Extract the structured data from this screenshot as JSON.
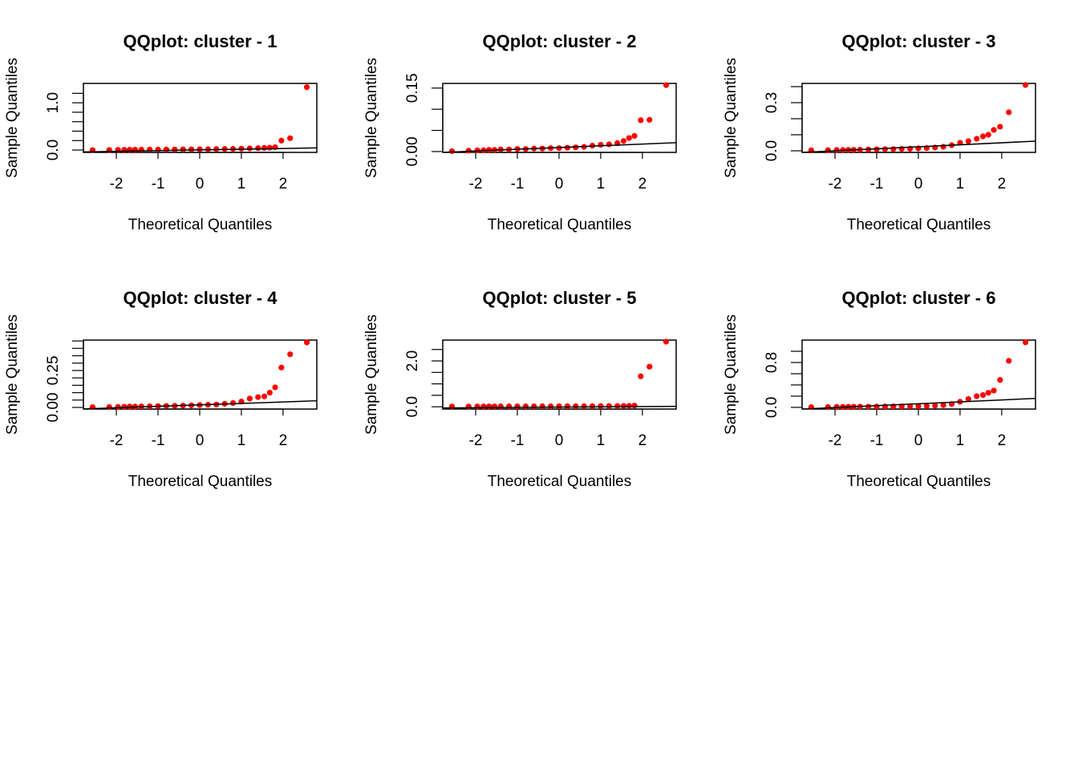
{
  "chart_data": [
    {
      "type": "scatter",
      "title": "QQplot: cluster - 1",
      "x_label": "Theoretical Quantiles",
      "y_label": "Sample Quantiles",
      "color": "#ff0000",
      "x": [
        -2.57,
        -2.17,
        -1.96,
        -1.81,
        -1.68,
        -1.55,
        -1.4,
        -1.2,
        -1.0,
        -0.8,
        -0.6,
        -0.4,
        -0.2,
        0,
        0.2,
        0.4,
        0.6,
        0.8,
        1.0,
        1.2,
        1.4,
        1.55,
        1.68,
        1.81,
        1.96,
        2.17,
        2.57
      ],
      "values": [
        0,
        0.002,
        0.004,
        0.005,
        0.006,
        0.007,
        0.008,
        0.01,
        0.011,
        0.012,
        0.013,
        0.014,
        0.015,
        0.016,
        0.018,
        0.02,
        0.022,
        0.025,
        0.03,
        0.035,
        0.04,
        0.045,
        0.05,
        0.06,
        0.2,
        0.25,
        1.33
      ],
      "reference_line": {
        "x": [
          -2.8,
          2.8
        ],
        "y": [
          -0.04,
          0.045
        ]
      },
      "xlim": [
        -2.79,
        2.81
      ],
      "xticks": [
        -2,
        -1,
        0,
        1,
        2
      ],
      "ylim": [
        -0.05,
        1.41
      ],
      "yticks": [
        {
          "value": 0,
          "label": "0.0"
        },
        {
          "value": 1,
          "label": "1.0"
        }
      ],
      "yminorticks": [
        0.2,
        0.4,
        0.6,
        0.8,
        1.2
      ]
    },
    {
      "type": "scatter",
      "title": "QQplot: cluster - 2",
      "x_label": "Theoretical Quantiles",
      "y_label": "Sample Quantiles",
      "color": "#ff0000",
      "x": [
        -2.57,
        -2.17,
        -1.96,
        -1.81,
        -1.68,
        -1.55,
        -1.4,
        -1.2,
        -1.0,
        -0.8,
        -0.6,
        -0.4,
        -0.2,
        0,
        0.2,
        0.4,
        0.6,
        0.8,
        1.0,
        1.2,
        1.4,
        1.55,
        1.68,
        1.81,
        1.96,
        2.17,
        2.57
      ],
      "values": [
        0.001,
        0.002,
        0.003,
        0.003,
        0.004,
        0.004,
        0.005,
        0.005,
        0.006,
        0.006,
        0.007,
        0.007,
        0.008,
        0.008,
        0.009,
        0.01,
        0.011,
        0.014,
        0.016,
        0.017,
        0.02,
        0.025,
        0.032,
        0.037,
        0.074,
        0.075,
        0.157
      ],
      "reference_line": {
        "x": [
          -2.8,
          2.8
        ],
        "y": [
          -0.002,
          0.021
        ]
      },
      "xlim": [
        -2.79,
        2.81
      ],
      "xticks": [
        -2,
        -1,
        0,
        1,
        2
      ],
      "ylim": [
        -0.002,
        0.161
      ],
      "yticks": [
        {
          "value": 0,
          "label": "0.00"
        },
        {
          "value": 0.15,
          "label": "0.15"
        }
      ],
      "yminorticks": [
        0.05,
        0.1
      ]
    },
    {
      "type": "scatter",
      "title": "QQplot: cluster - 3",
      "x_label": "Theoretical Quantiles",
      "y_label": "Sample Quantiles",
      "color": "#ff0000",
      "x": [
        -2.57,
        -2.17,
        -1.96,
        -1.81,
        -1.68,
        -1.55,
        -1.4,
        -1.2,
        -1.0,
        -0.8,
        -0.6,
        -0.4,
        -0.2,
        0,
        0.2,
        0.4,
        0.6,
        0.8,
        1.0,
        1.2,
        1.4,
        1.55,
        1.68,
        1.81,
        1.96,
        2.17,
        2.57
      ],
      "values": [
        0.003,
        0.004,
        0.005,
        0.005,
        0.006,
        0.006,
        0.007,
        0.008,
        0.009,
        0.01,
        0.011,
        0.012,
        0.013,
        0.015,
        0.017,
        0.02,
        0.025,
        0.035,
        0.05,
        0.06,
        0.075,
        0.09,
        0.1,
        0.13,
        0.15,
        0.24,
        0.41
      ],
      "reference_line": {
        "x": [
          -2.8,
          2.8
        ],
        "y": [
          -0.01,
          0.06
        ]
      },
      "xlim": [
        -2.79,
        2.81
      ],
      "xticks": [
        -2,
        -1,
        0,
        1,
        2
      ],
      "ylim": [
        -0.01,
        0.42
      ],
      "yticks": [
        {
          "value": 0,
          "label": "0.0"
        },
        {
          "value": 0.3,
          "label": "0.3"
        }
      ],
      "yminorticks": [
        0.1,
        0.2,
        0.4
      ]
    },
    {
      "type": "scatter",
      "title": "QQplot: cluster - 4",
      "x_label": "Theoretical Quantiles",
      "y_label": "Sample Quantiles",
      "color": "#ff0000",
      "x": [
        -2.57,
        -2.17,
        -1.96,
        -1.81,
        -1.68,
        -1.55,
        -1.4,
        -1.2,
        -1.0,
        -0.8,
        -0.6,
        -0.4,
        -0.2,
        0,
        0.2,
        0.4,
        0.6,
        0.8,
        1.0,
        1.2,
        1.4,
        1.55,
        1.68,
        1.81,
        1.96,
        2.17,
        2.57
      ],
      "values": [
        0.002,
        0.003,
        0.004,
        0.005,
        0.006,
        0.006,
        0.007,
        0.008,
        0.009,
        0.01,
        0.011,
        0.012,
        0.014,
        0.016,
        0.018,
        0.02,
        0.025,
        0.03,
        0.04,
        0.06,
        0.07,
        0.075,
        0.1,
        0.136,
        0.27,
        0.36,
        0.44
      ],
      "reference_line": {
        "x": [
          -2.8,
          2.8
        ],
        "y": [
          -0.01,
          0.045
        ]
      },
      "xlim": [
        -2.79,
        2.81
      ],
      "xticks": [
        -2,
        -1,
        0,
        1,
        2
      ],
      "ylim": [
        -0.011,
        0.456
      ],
      "yticks": [
        {
          "value": 0,
          "label": "0.00"
        },
        {
          "value": 0.25,
          "label": "0.25"
        }
      ],
      "yminorticks": [
        0.05,
        0.1,
        0.15,
        0.2,
        0.3,
        0.35,
        0.4,
        0.45
      ]
    },
    {
      "type": "scatter",
      "title": "QQplot: cluster - 5",
      "x_label": "Theoretical Quantiles",
      "y_label": "Sample Quantiles",
      "color": "#ff0000",
      "x": [
        -2.57,
        -2.17,
        -1.96,
        -1.81,
        -1.68,
        -1.55,
        -1.4,
        -1.2,
        -1.0,
        -0.8,
        -0.6,
        -0.4,
        -0.2,
        0,
        0.2,
        0.4,
        0.6,
        0.8,
        1.0,
        1.2,
        1.4,
        1.55,
        1.68,
        1.81,
        1.96,
        2.17,
        2.57
      ],
      "values": [
        0.01,
        0.012,
        0.013,
        0.014,
        0.015,
        0.016,
        0.017,
        0.018,
        0.019,
        0.02,
        0.021,
        0.022,
        0.023,
        0.024,
        0.025,
        0.026,
        0.027,
        0.028,
        0.03,
        0.032,
        0.034,
        0.036,
        0.04,
        0.05,
        1.33,
        1.75,
        2.84
      ],
      "reference_line": {
        "x": [
          -2.8,
          2.8
        ],
        "y": [
          -0.05,
          0.02
        ]
      },
      "xlim": [
        -2.79,
        2.81
      ],
      "xticks": [
        -2,
        -1,
        0,
        1,
        2
      ],
      "ylim": [
        -0.1,
        2.91
      ],
      "yticks": [
        {
          "value": 0,
          "label": "0.0"
        },
        {
          "value": 2,
          "label": "2.0"
        }
      ],
      "yminorticks": [
        0.5,
        1,
        1.5,
        2.5
      ]
    },
    {
      "type": "scatter",
      "title": "QQplot: cluster - 6",
      "x_label": "Theoretical Quantiles",
      "y_label": "Sample Quantiles",
      "color": "#ff0000",
      "x": [
        -2.57,
        -2.17,
        -1.96,
        -1.81,
        -1.68,
        -1.55,
        -1.4,
        -1.2,
        -1.0,
        -0.8,
        -0.6,
        -0.4,
        -0.2,
        0,
        0.2,
        0.4,
        0.6,
        0.8,
        1.0,
        1.2,
        1.4,
        1.55,
        1.68,
        1.81,
        1.96,
        2.17,
        2.57
      ],
      "values": [
        0.005,
        0.007,
        0.009,
        0.01,
        0.011,
        0.012,
        0.013,
        0.014,
        0.015,
        0.016,
        0.017,
        0.018,
        0.02,
        0.022,
        0.025,
        0.03,
        0.04,
        0.06,
        0.1,
        0.15,
        0.2,
        0.22,
        0.26,
        0.3,
        0.49,
        0.83,
        1.16
      ],
      "reference_line": {
        "x": [
          -2.8,
          2.8
        ],
        "y": [
          -0.03,
          0.16
        ]
      },
      "xlim": [
        -2.79,
        2.81
      ],
      "xticks": [
        -2,
        -1,
        0,
        1,
        2
      ],
      "ylim": [
        -0.03,
        1.2
      ],
      "yticks": [
        {
          "value": 0,
          "label": "0.0"
        },
        {
          "value": 0.8,
          "label": "0.8"
        }
      ],
      "yminorticks": [
        0.2,
        0.4,
        0.6,
        1.0
      ]
    }
  ]
}
